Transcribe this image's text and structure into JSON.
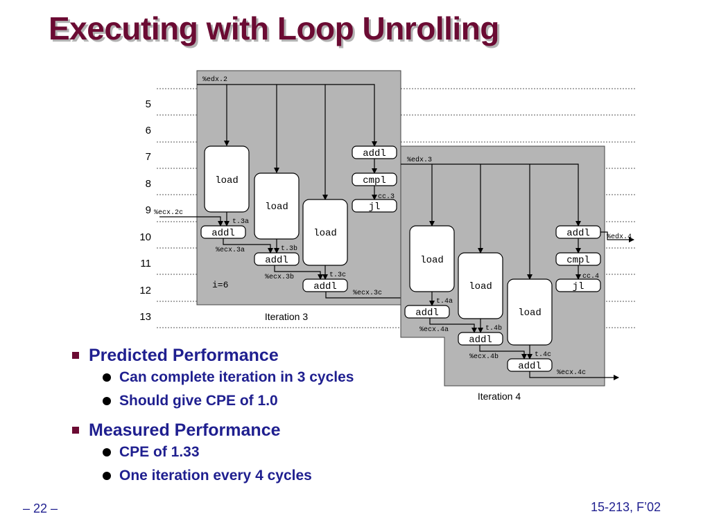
{
  "slide": {
    "title": "Executing with Loop Unrolling",
    "footer_left": "– 22 –",
    "footer_right": "15-213, F’02"
  },
  "diagram": {
    "cycles": [
      "5",
      "6",
      "7",
      "8",
      "9",
      "10",
      "11",
      "12",
      "13"
    ],
    "iteration3": {
      "caption": "Iteration 3",
      "edx_in": "%edx.2",
      "ecx_in": "%ecx.2c",
      "loads": [
        "load",
        "load",
        "load"
      ],
      "adds": [
        "addl",
        "addl",
        "addl"
      ],
      "regs": [
        "t.3a",
        "%ecx.3a",
        "t.3b",
        "%ecx.3b",
        "t.3c",
        "%ecx.3c"
      ],
      "ctrl": [
        "addl",
        "cmpl",
        "jl"
      ],
      "cc": "cc.3",
      "i_label": "i=6"
    },
    "iteration4": {
      "caption": "Iteration 4",
      "edx_in": "%edx.3",
      "edx_out": "%edx.4",
      "loads": [
        "load",
        "load",
        "load"
      ],
      "adds": [
        "addl",
        "addl",
        "addl"
      ],
      "regs": [
        "t.4a",
        "%ecx.4a",
        "t.4b",
        "%ecx.4b",
        "t.4c",
        "%ecx.4c"
      ],
      "ctrl": [
        "addl",
        "cmpl",
        "jl"
      ],
      "cc": "cc.4"
    }
  },
  "bullets": [
    {
      "text": "Predicted Performance",
      "items": [
        "Can complete iteration in 3 cycles",
        "Should give CPE of 1.0"
      ]
    },
    {
      "text": "Measured Performance",
      "items": [
        "CPE of 1.33",
        "One iteration every 4 cycles"
      ]
    }
  ],
  "colors": {
    "title": "#6b0b33",
    "bullet_text": "#1f1f8f",
    "panel": "#b5b5b5"
  }
}
